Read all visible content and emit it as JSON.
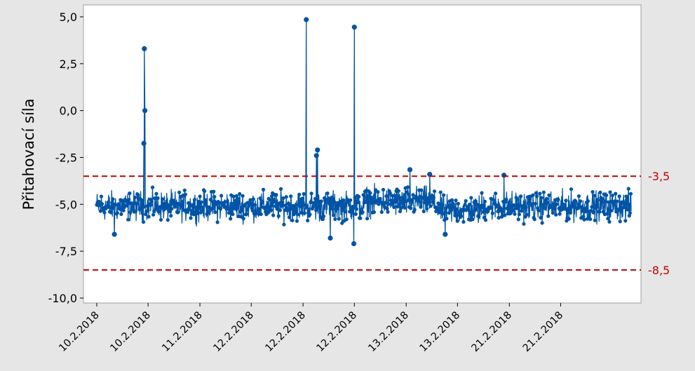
{
  "chart_data": {
    "type": "line",
    "title": "",
    "ylabel": "Přitahovací síla",
    "xlabel": "",
    "ylim": [
      -10.0,
      5.0
    ],
    "y_ticks": [
      "5,0",
      "2,5",
      "0,0",
      "-2,5",
      "-5,0",
      "-7,5",
      "-10,0"
    ],
    "y_tick_values": [
      5.0,
      2.5,
      0.0,
      -2.5,
      -5.0,
      -7.5,
      -10.0
    ],
    "x_tick_labels": [
      "10.2.2018",
      "10.2.2018",
      "11.2.2018",
      "12.2.2018",
      "12.2.2018",
      "12.2.2018",
      "13.2.2018",
      "13.2.2018",
      "21.2.2018",
      "21.2.2018"
    ],
    "x_range": [
      0,
      100
    ],
    "x_tick_positions": [
      0,
      9.6,
      19.3,
      28.9,
      38.6,
      48.2,
      57.9,
      67.5,
      77.2,
      86.8
    ],
    "reference_lines": [
      {
        "value": -3.5,
        "label": "-3,5",
        "color": "#c00000",
        "style": "dashed"
      },
      {
        "value": -8.5,
        "label": "-8,5",
        "color": "#c00000",
        "style": "dashed"
      }
    ],
    "series": [
      {
        "color": "#0054a6",
        "baseline": -5.1,
        "noise_amplitude": 0.75,
        "sample_count": 1400,
        "spikes": [
          {
            "x": 8.9,
            "y": 3.3
          },
          {
            "x": 9.0,
            "y": 0.0
          },
          {
            "x": 8.8,
            "y": -1.75
          },
          {
            "x": 39.2,
            "y": 4.85
          },
          {
            "x": 41.1,
            "y": -2.4
          },
          {
            "x": 41.3,
            "y": -2.1
          },
          {
            "x": 48.2,
            "y": 4.45
          },
          {
            "x": 48.1,
            "y": -7.1
          },
          {
            "x": 58.6,
            "y": -3.15
          },
          {
            "x": 62.3,
            "y": -3.4
          },
          {
            "x": 3.3,
            "y": -6.6
          },
          {
            "x": 65.2,
            "y": -6.6
          },
          {
            "x": 76.2,
            "y": -3.45
          },
          {
            "x": 43.7,
            "y": -6.8
          }
        ]
      }
    ],
    "grid": false,
    "colors": {
      "background": "#e6e6e6",
      "plot_area": "#ffffff",
      "frame": "#a0a0a0",
      "series": "#0054a6",
      "reference": "#c00000"
    }
  }
}
